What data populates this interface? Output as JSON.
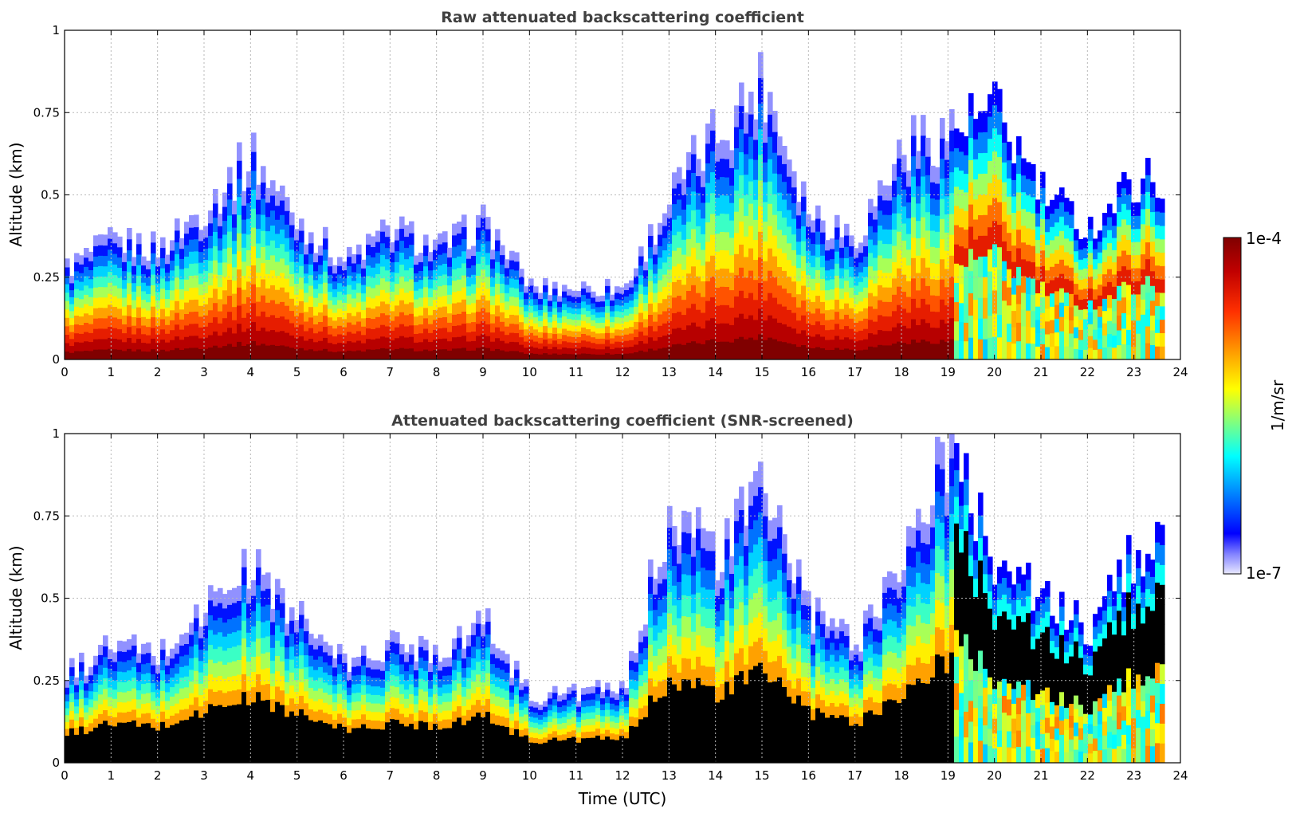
{
  "chart_data": [
    {
      "type": "heatmap",
      "title": "Raw attenuated backscattering coefficient",
      "xlabel": "",
      "ylabel": "Altitude (km)",
      "xlim": [
        0,
        24
      ],
      "ylim": [
        0,
        1
      ],
      "xticks": [
        "0",
        "1",
        "2",
        "3",
        "4",
        "5",
        "6",
        "7",
        "8",
        "9",
        "10",
        "11",
        "12",
        "13",
        "14",
        "15",
        "16",
        "17",
        "18",
        "19",
        "20",
        "21",
        "22",
        "23",
        "24"
      ],
      "yticks": [
        "0",
        "0.25",
        "0.5",
        "0.75",
        "1"
      ],
      "grid": true,
      "data_end_hour": 23.65,
      "screened": false,
      "cloud_top_km": [
        {
          "t": 0,
          "top": 0.28
        },
        {
          "t": 1,
          "top": 0.36
        },
        {
          "t": 2,
          "top": 0.34
        },
        {
          "t": 3,
          "top": 0.47
        },
        {
          "t": 4,
          "top": 0.62
        },
        {
          "t": 5,
          "top": 0.42
        },
        {
          "t": 6,
          "top": 0.3
        },
        {
          "t": 7,
          "top": 0.4
        },
        {
          "t": 8,
          "top": 0.34
        },
        {
          "t": 9,
          "top": 0.42
        },
        {
          "t": 10,
          "top": 0.22
        },
        {
          "t": 11,
          "top": 0.22
        },
        {
          "t": 12,
          "top": 0.22
        },
        {
          "t": 13,
          "top": 0.5
        },
        {
          "t": 14,
          "top": 0.7
        },
        {
          "t": 15,
          "top": 0.85
        },
        {
          "t": 16,
          "top": 0.45
        },
        {
          "t": 17,
          "top": 0.38
        },
        {
          "t": 18,
          "top": 0.65
        },
        {
          "t": 19,
          "top": 0.7
        },
        {
          "t": 20,
          "top": 0.75
        },
        {
          "t": 21,
          "top": 0.5
        },
        {
          "t": 22,
          "top": 0.4
        },
        {
          "t": 23,
          "top": 0.55
        }
      ]
    },
    {
      "type": "heatmap",
      "title": "Attenuated backscattering coefficient (SNR-screened)",
      "xlabel": "Time (UTC)",
      "ylabel": "Altitude (km)",
      "xlim": [
        0,
        24
      ],
      "ylim": [
        0,
        1
      ],
      "xticks": [
        "0",
        "1",
        "2",
        "3",
        "4",
        "5",
        "6",
        "7",
        "8",
        "9",
        "10",
        "11",
        "12",
        "13",
        "14",
        "15",
        "16",
        "17",
        "18",
        "19",
        "20",
        "21",
        "22",
        "23",
        "24"
      ],
      "yticks": [
        "0",
        "0.25",
        "0.5",
        "0.75",
        "1"
      ],
      "grid": true,
      "data_end_hour": 23.65,
      "screened": true,
      "cloud_top_km": [
        {
          "t": 0,
          "top": 0.27
        },
        {
          "t": 1,
          "top": 0.36
        },
        {
          "t": 2,
          "top": 0.33
        },
        {
          "t": 3,
          "top": 0.48
        },
        {
          "t": 4,
          "top": 0.6
        },
        {
          "t": 5,
          "top": 0.44
        },
        {
          "t": 6,
          "top": 0.3
        },
        {
          "t": 7,
          "top": 0.36
        },
        {
          "t": 8,
          "top": 0.35
        },
        {
          "t": 9,
          "top": 0.43
        },
        {
          "t": 10,
          "top": 0.2
        },
        {
          "t": 11,
          "top": 0.22
        },
        {
          "t": 12,
          "top": 0.22
        },
        {
          "t": 13,
          "top": 0.8
        },
        {
          "t": 14,
          "top": 0.62
        },
        {
          "t": 15,
          "top": 0.85
        },
        {
          "t": 16,
          "top": 0.45
        },
        {
          "t": 17,
          "top": 0.37
        },
        {
          "t": 18,
          "top": 0.65
        },
        {
          "t": 19,
          "top": 0.95
        },
        {
          "t": 20,
          "top": 0.62
        },
        {
          "t": 21,
          "top": 0.5
        },
        {
          "t": 22,
          "top": 0.4
        },
        {
          "t": 23,
          "top": 0.65
        }
      ]
    }
  ],
  "colorbar": {
    "max_label": "1e-4",
    "min_label": "1e-7",
    "unit_label": "1/m/sr",
    "colormap": "jet"
  }
}
